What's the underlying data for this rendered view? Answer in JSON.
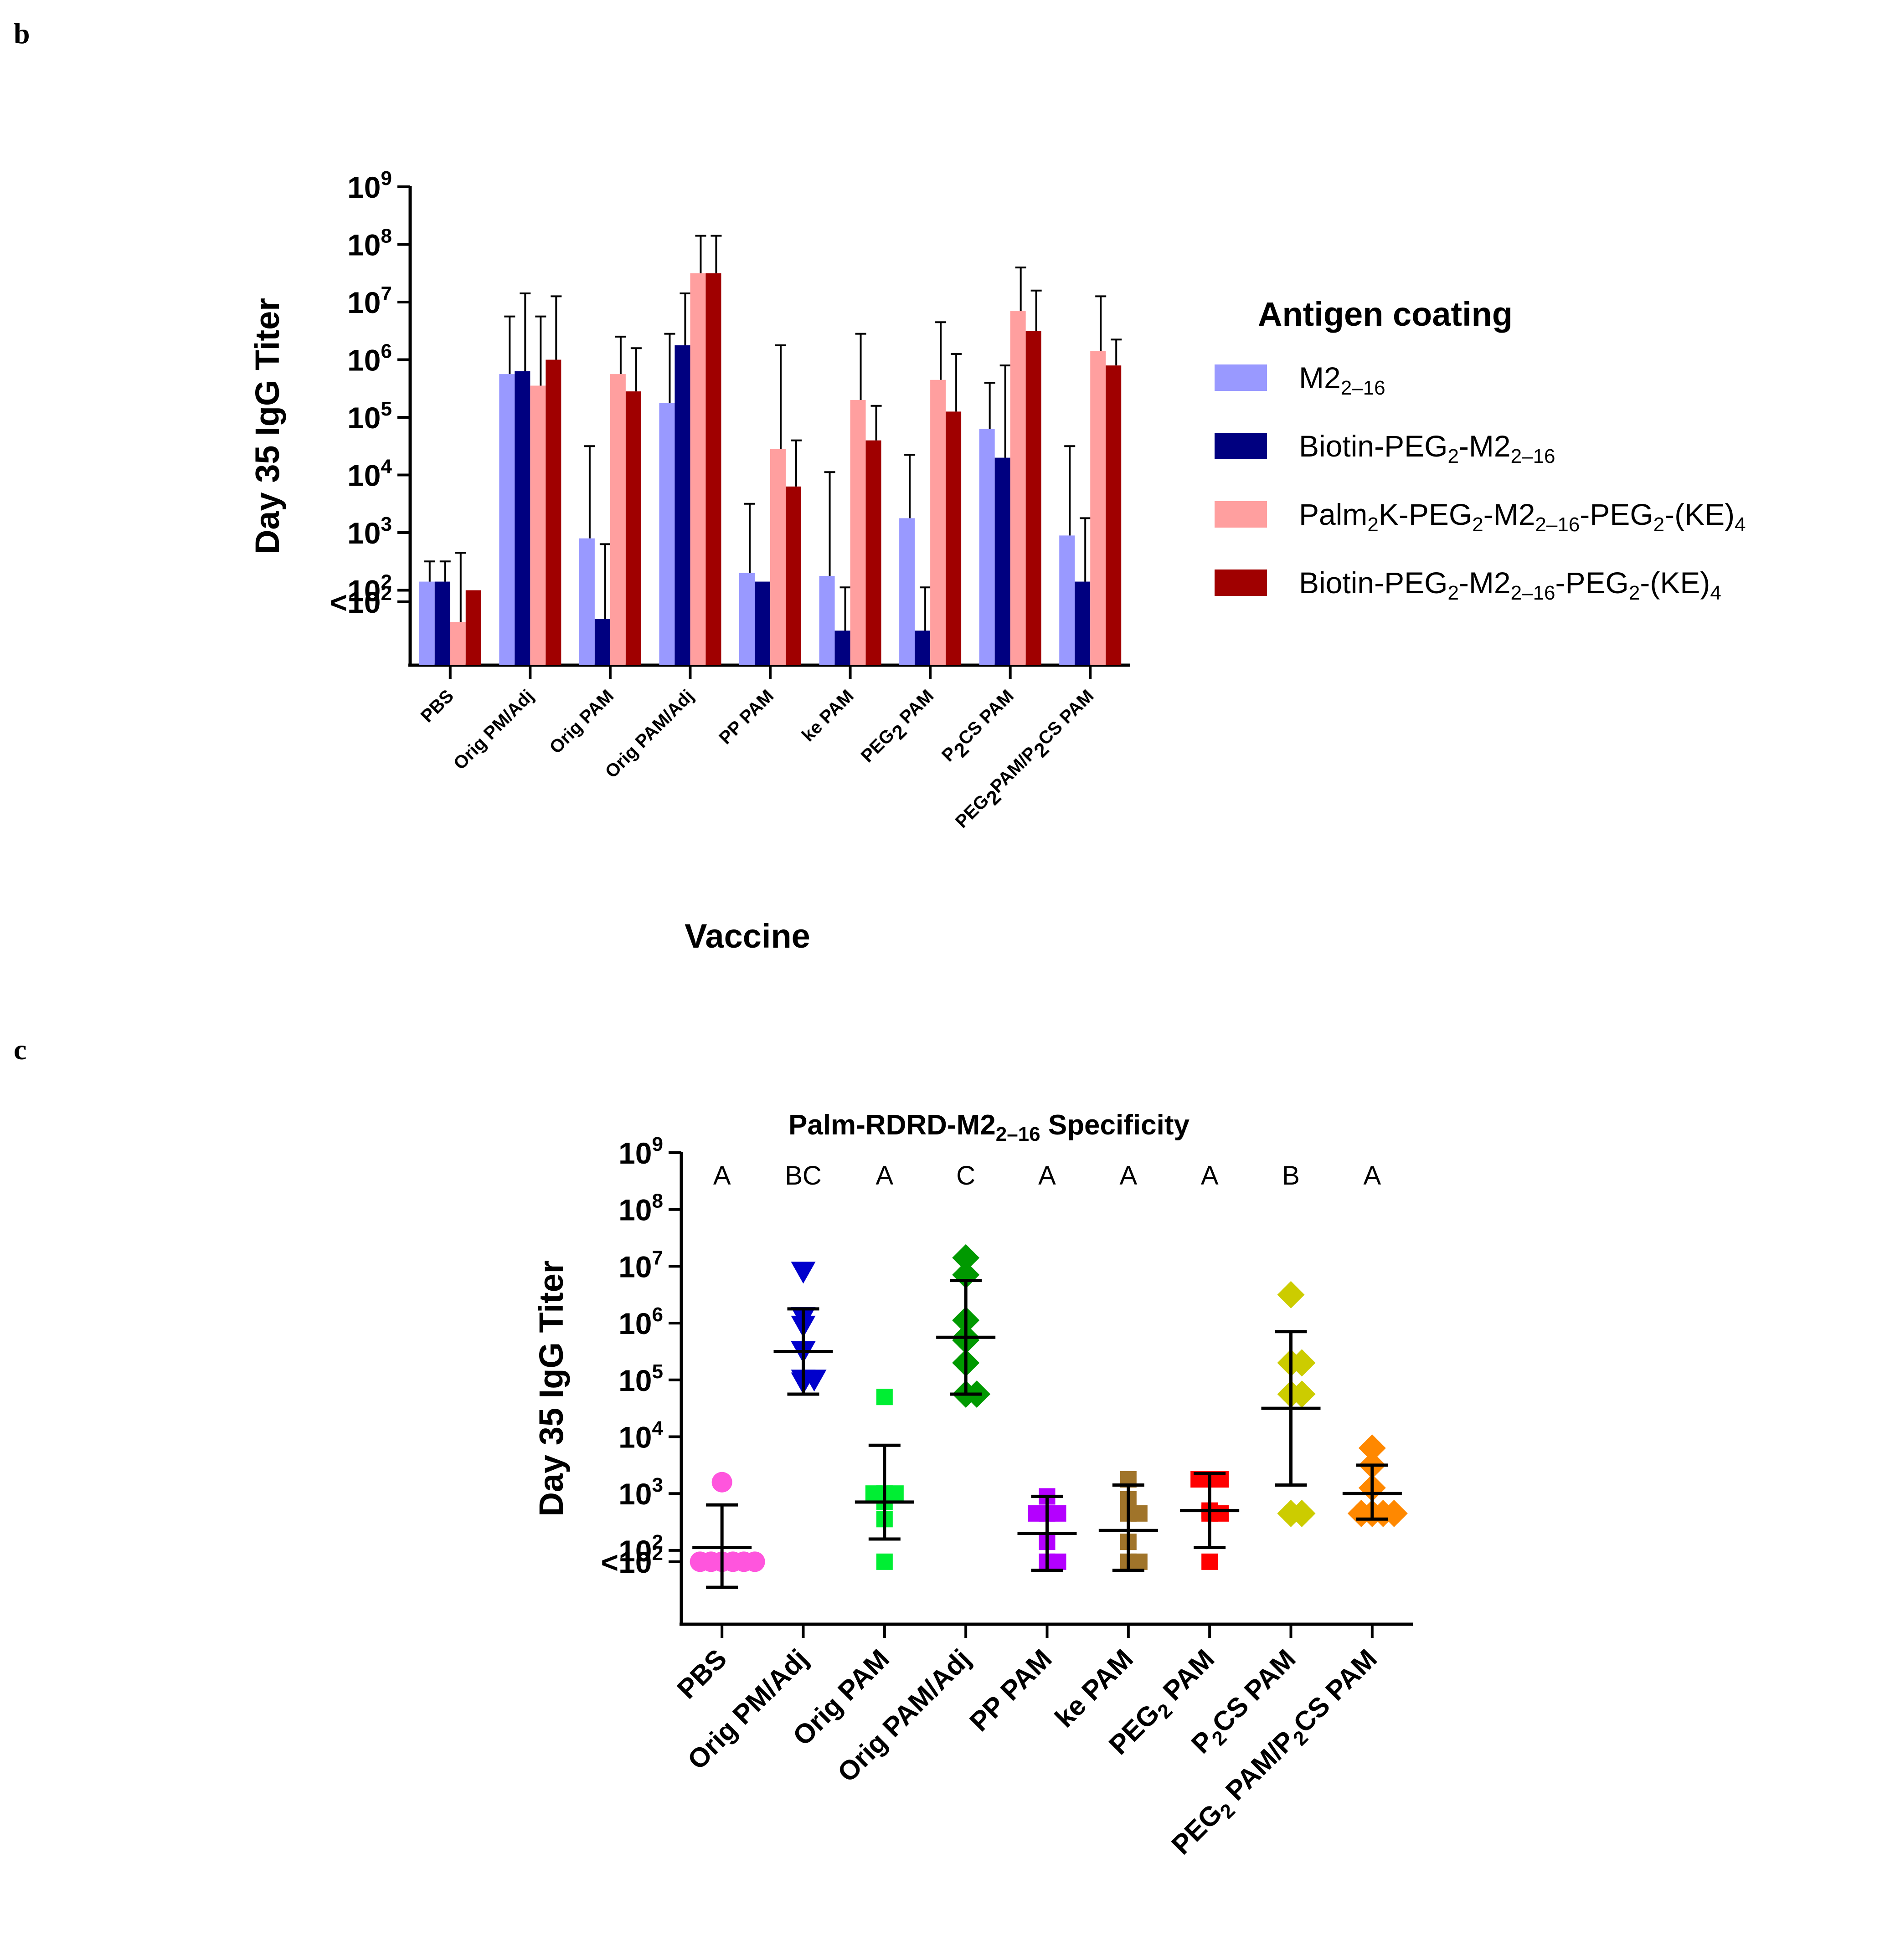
{
  "panel_labels": {
    "b": "b",
    "c": "c"
  },
  "chart_data": [
    {
      "type": "bar",
      "panel": "b",
      "title": "",
      "xlabel": "Vaccine",
      "ylabel": "Day 35 IgG Titer",
      "yscale": "log10",
      "ylim": [
        0.7,
        9
      ],
      "yticks": [
        {
          "base": "<10",
          "exp": "2",
          "value": 1.8
        },
        {
          "base": "10",
          "exp": "2",
          "value": 2
        },
        {
          "base": "10",
          "exp": "3",
          "value": 3
        },
        {
          "base": "10",
          "exp": "4",
          "value": 4
        },
        {
          "base": "10",
          "exp": "5",
          "value": 5
        },
        {
          "base": "10",
          "exp": "6",
          "value": 6
        },
        {
          "base": "10",
          "exp": "7",
          "value": 7
        },
        {
          "base": "10",
          "exp": "8",
          "value": 8
        },
        {
          "base": "10",
          "exp": "9",
          "value": 9
        }
      ],
      "categories": [
        {
          "label": "PBS"
        },
        {
          "label": "Orig PM/Adj"
        },
        {
          "label": "Orig PAM"
        },
        {
          "label": "Orig PAM/Adj"
        },
        {
          "label": "PP PAM"
        },
        {
          "label": "ke PAM"
        },
        {
          "label": "PEG",
          "sub": "2",
          "rest": " PAM"
        },
        {
          "label": "P",
          "sub": "2",
          "rest": "CS PAM"
        },
        {
          "label": "PEG",
          "sub": "2",
          "rest": "PAM/P",
          "sub2": "2",
          "rest2": "CS PAM"
        }
      ],
      "legend": {
        "title": "Antigen coating",
        "entries": [
          {
            "parts": [
              {
                "t": "M2"
              },
              {
                "t": "2–16",
                "sub": true
              }
            ]
          },
          {
            "parts": [
              {
                "t": "Biotin-PEG"
              },
              {
                "t": "2",
                "sub": true
              },
              {
                "t": "-M2"
              },
              {
                "t": "2–16",
                "sub": true
              }
            ]
          },
          {
            "parts": [
              {
                "t": "Palm"
              },
              {
                "t": "2",
                "sub": true
              },
              {
                "t": "K-PEG"
              },
              {
                "t": "2",
                "sub": true
              },
              {
                "t": "-M2"
              },
              {
                "t": "2–16",
                "sub": true
              },
              {
                "t": "-PEG"
              },
              {
                "t": "2",
                "sub": true
              },
              {
                "t": "-(KE)"
              },
              {
                "t": "4",
                "sub": true
              }
            ]
          },
          {
            "parts": [
              {
                "t": "Biotin-PEG"
              },
              {
                "t": "2",
                "sub": true
              },
              {
                "t": "-M2"
              },
              {
                "t": "2–16",
                "sub": true
              },
              {
                "t": "-PEG"
              },
              {
                "t": "2",
                "sub": true
              },
              {
                "t": "-(KE)"
              },
              {
                "t": "4",
                "sub": true
              }
            ]
          }
        ]
      },
      "series": [
        {
          "name": "M2 2–16",
          "color": "#9999ff",
          "values": [
            2.15,
            5.75,
            2.9,
            5.25,
            2.3,
            2.25,
            3.25,
            4.8,
            2.95
          ],
          "errors_upper": [
            2.5,
            6.75,
            4.5,
            6.45,
            3.5,
            4.05,
            4.35,
            5.6,
            4.5
          ]
        },
        {
          "name": "Biotin-PEG2-M2 2–16",
          "color": "#000080",
          "values": [
            2.15,
            5.8,
            1.5,
            6.25,
            2.15,
            1.3,
            1.3,
            4.3,
            2.15
          ],
          "errors_upper": [
            2.5,
            7.15,
            2.8,
            7.15,
            1.5,
            2.05,
            2.05,
            5.9,
            3.25
          ]
        },
        {
          "name": "Palm2K-PEG2-M2 2–16-PEG2-(KE)4",
          "color": "#ff9f9f",
          "values": [
            1.45,
            5.55,
            5.75,
            7.5,
            4.45,
            5.3,
            5.65,
            6.85,
            6.15
          ],
          "errors_upper": [
            2.65,
            6.75,
            6.4,
            8.15,
            6.25,
            6.45,
            6.65,
            7.6,
            7.1
          ]
        },
        {
          "name": "Biotin-PEG2-M2 2–16-PEG2-(KE)4",
          "color": "#a00000",
          "values": [
            2.0,
            6.0,
            5.45,
            7.5,
            3.8,
            4.6,
            5.1,
            6.5,
            5.9
          ],
          "errors_upper": [
            null,
            7.1,
            6.2,
            8.15,
            4.6,
            5.2,
            6.1,
            7.2,
            6.35
          ]
        }
      ]
    },
    {
      "type": "scatter",
      "panel": "c",
      "title_parts": [
        {
          "t": "Palm-RDRD-M2"
        },
        {
          "t": "2–16",
          "sub": true
        },
        {
          "t": " Specificity"
        }
      ],
      "xlabel": "",
      "ylabel": "Day 35 IgG Titer",
      "yscale": "log10",
      "ylim": [
        0.7,
        9
      ],
      "yticks": [
        {
          "base": "<10",
          "exp": "2",
          "value": 1.8
        },
        {
          "base": "10",
          "exp": "2",
          "value": 2
        },
        {
          "base": "10",
          "exp": "3",
          "value": 3
        },
        {
          "base": "10",
          "exp": "4",
          "value": 4
        },
        {
          "base": "10",
          "exp": "5",
          "value": 5
        },
        {
          "base": "10",
          "exp": "6",
          "value": 6
        },
        {
          "base": "10",
          "exp": "7",
          "value": 7
        },
        {
          "base": "10",
          "exp": "8",
          "value": 8
        },
        {
          "base": "10",
          "exp": "9",
          "value": 9
        }
      ],
      "groups": [
        {
          "label": "PBS",
          "letter": "A",
          "color": "#ff55dd",
          "marker": "circle",
          "points": [
            3.2,
            1.8,
            1.8,
            1.8,
            1.8,
            1.8,
            1.8
          ],
          "mean": 2.05,
          "sd_low": 1.35,
          "sd_high": 2.8
        },
        {
          "label": "Orig PM/Adj",
          "letter": "BC",
          "color": "#0000cc",
          "marker": "triangle-down",
          "points": [
            6.9,
            6.1,
            5.95,
            5.5,
            5.0,
            5.0,
            4.95
          ],
          "mean": 5.5,
          "sd_low": 4.75,
          "sd_high": 6.25
        },
        {
          "label": "Orig PAM",
          "letter": "A",
          "color": "#00ee33",
          "marker": "square",
          "points": [
            4.7,
            3.0,
            3.0,
            2.85,
            3.0,
            2.55,
            1.8
          ],
          "mean": 2.85,
          "sd_low": 2.2,
          "sd_high": 3.85
        },
        {
          "label": "Orig PAM/Adj",
          "letter": "C",
          "color": "#009900",
          "marker": "diamond",
          "points": [
            7.15,
            6.85,
            6.05,
            5.75,
            5.7,
            5.3,
            4.75,
            4.75
          ],
          "mean": 5.75,
          "sd_low": 4.75,
          "sd_high": 6.75
        },
        {
          "label": "PP PAM",
          "letter": "A",
          "color": "#b400ff",
          "marker": "square",
          "points": [
            2.95,
            2.65,
            2.65,
            2.65,
            2.15,
            1.8,
            1.8
          ],
          "mean": 2.3,
          "sd_low": 1.65,
          "sd_high": 2.95
        },
        {
          "label": "ke PAM",
          "letter": "A",
          "color": "#a0742a",
          "marker": "square",
          "points": [
            3.25,
            2.9,
            2.65,
            2.65,
            2.15,
            1.8,
            1.8
          ],
          "mean": 2.35,
          "sd_low": 1.65,
          "sd_high": 3.15
        },
        {
          "label": "PEG2 PAM",
          "label_parts": [
            {
              "t": "PEG"
            },
            {
              "t": "2",
              "sub": true
            },
            {
              "t": " PAM"
            }
          ],
          "letter": "A",
          "color": "#ff0000",
          "marker": "square",
          "points": [
            3.25,
            3.25,
            3.25,
            2.7,
            2.65,
            2.65,
            1.8
          ],
          "mean": 2.7,
          "sd_low": 2.05,
          "sd_high": 3.35
        },
        {
          "label": "P2CS PAM",
          "label_parts": [
            {
              "t": "P"
            },
            {
              "t": "2",
              "sub": true
            },
            {
              "t": "CS PAM"
            }
          ],
          "letter": "B",
          "color": "#cccc00",
          "marker": "diamond",
          "points": [
            6.5,
            5.3,
            5.3,
            4.75,
            4.75,
            2.65,
            2.65
          ],
          "mean": 4.5,
          "sd_low": 3.15,
          "sd_high": 5.85
        },
        {
          "label": "PEG2 PAM/P2CS PAM",
          "label_parts": [
            {
              "t": "PEG"
            },
            {
              "t": "2",
              "sub": true
            },
            {
              "t": " PAM/P"
            },
            {
              "t": "2",
              "sub": true
            },
            {
              "t": "CS PAM"
            }
          ],
          "letter": "A",
          "color": "#ff8800",
          "marker": "diamond",
          "points": [
            3.8,
            3.5,
            3.1,
            2.65,
            2.65,
            2.65,
            2.65
          ],
          "mean": 3.0,
          "sd_low": 2.55,
          "sd_high": 3.5
        }
      ]
    }
  ]
}
